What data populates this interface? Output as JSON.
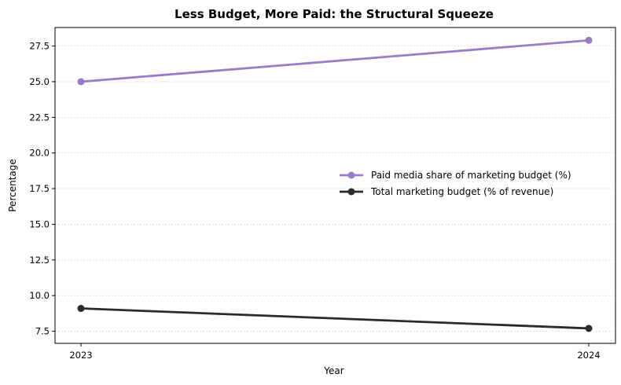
{
  "chart_data": {
    "type": "line",
    "title": "Less Budget, More Paid: the Structural Squeeze",
    "xlabel": "Year",
    "ylabel": "Percentage",
    "categories": [
      "2023",
      "2024"
    ],
    "ylim": [
      6.65,
      28.8
    ],
    "yticks": [
      "7.5",
      "10.0",
      "12.5",
      "15.0",
      "17.5",
      "20.0",
      "22.5",
      "25.0",
      "27.5"
    ],
    "grid": "y-dotted",
    "legend_position": "center-right",
    "series": [
      {
        "name": "Paid media share of marketing budget (%)",
        "values": [
          25.0,
          27.9
        ],
        "color": "#9b7bc4"
      },
      {
        "name": "Total marketing budget (% of revenue)",
        "values": [
          9.1,
          7.7
        ],
        "color": "#2b2b2b"
      }
    ]
  }
}
